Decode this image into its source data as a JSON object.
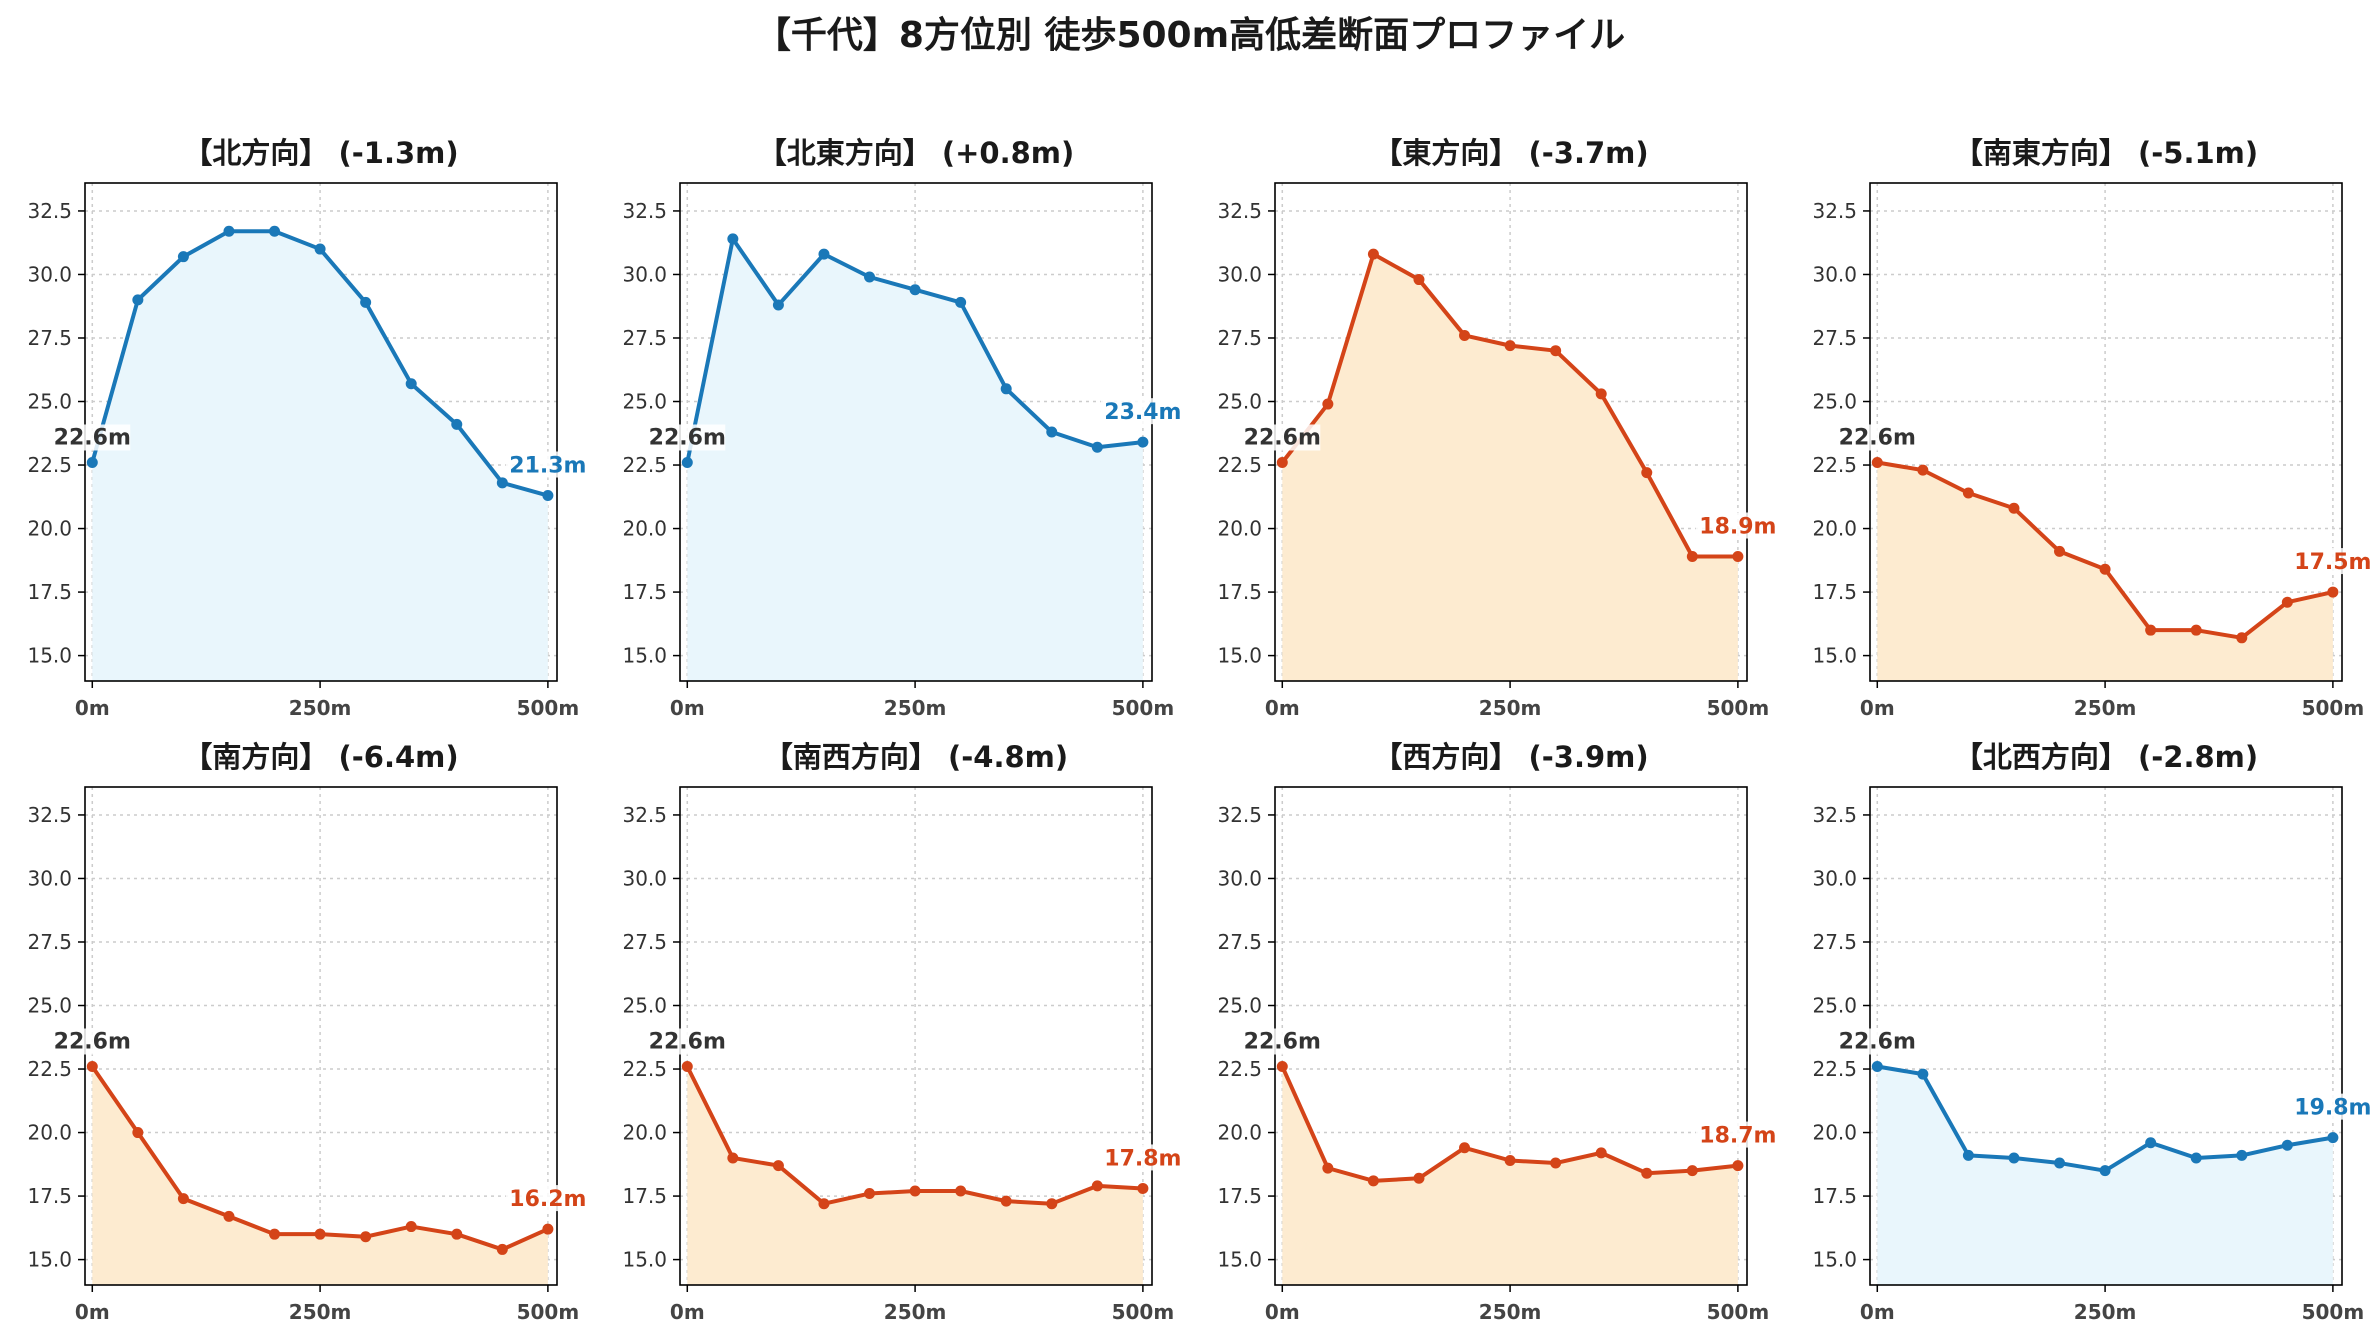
{
  "figure": {
    "title": "【千代】8方位別 徒歩500m高低差断面プロファイル"
  },
  "colors": {
    "up": "#1a78b8",
    "up_fill": "#e9f6fc",
    "down": "#d44418",
    "down_fill": "#fdebd0",
    "start_label": "#333333"
  },
  "chart_data": [
    {
      "type": "line",
      "title": "【北方向】 (-1.3m)",
      "trend": "up",
      "x": [
        0,
        50,
        100,
        150,
        200,
        250,
        300,
        350,
        400,
        450,
        500
      ],
      "values": [
        22.6,
        29.0,
        30.7,
        31.7,
        31.7,
        31.0,
        28.9,
        25.7,
        24.1,
        21.8,
        21.3
      ],
      "start_label": "22.6m",
      "end_label": "21.3m",
      "xticks": [
        "0m",
        "250m",
        "500m"
      ],
      "yticks": [
        "15.0",
        "17.5",
        "20.0",
        "22.5",
        "25.0",
        "27.5",
        "30.0",
        "32.5"
      ],
      "xlim": [
        -8,
        510
      ],
      "ylim": [
        14.0,
        33.6
      ],
      "grid": true
    },
    {
      "type": "line",
      "title": "【北東方向】 (+0.8m)",
      "trend": "up",
      "x": [
        0,
        50,
        100,
        150,
        200,
        250,
        300,
        350,
        400,
        450,
        500
      ],
      "values": [
        22.6,
        31.4,
        28.8,
        30.8,
        29.9,
        29.4,
        28.9,
        25.5,
        23.8,
        23.2,
        23.4
      ],
      "start_label": "22.6m",
      "end_label": "23.4m",
      "xticks": [
        "0m",
        "250m",
        "500m"
      ],
      "yticks": [
        "15.0",
        "17.5",
        "20.0",
        "22.5",
        "25.0",
        "27.5",
        "30.0",
        "32.5"
      ],
      "xlim": [
        -8,
        510
      ],
      "ylim": [
        14.0,
        33.6
      ],
      "grid": true
    },
    {
      "type": "line",
      "title": "【東方向】 (-3.7m)",
      "trend": "down",
      "x": [
        0,
        50,
        100,
        150,
        200,
        250,
        300,
        350,
        400,
        450,
        500
      ],
      "values": [
        22.6,
        24.9,
        30.8,
        29.8,
        27.6,
        27.2,
        27.0,
        25.3,
        22.2,
        18.9,
        18.9
      ],
      "start_label": "22.6m",
      "end_label": "18.9m",
      "xticks": [
        "0m",
        "250m",
        "500m"
      ],
      "yticks": [
        "15.0",
        "17.5",
        "20.0",
        "22.5",
        "25.0",
        "27.5",
        "30.0",
        "32.5"
      ],
      "xlim": [
        -8,
        510
      ],
      "ylim": [
        14.0,
        33.6
      ],
      "grid": true
    },
    {
      "type": "line",
      "title": "【南東方向】 (-5.1m)",
      "trend": "down",
      "x": [
        0,
        50,
        100,
        150,
        200,
        250,
        300,
        350,
        400,
        450,
        500
      ],
      "values": [
        22.6,
        22.3,
        21.4,
        20.8,
        19.1,
        18.4,
        16.0,
        16.0,
        15.7,
        17.1,
        17.5
      ],
      "start_label": "22.6m",
      "end_label": "17.5m",
      "xticks": [
        "0m",
        "250m",
        "500m"
      ],
      "yticks": [
        "15.0",
        "17.5",
        "20.0",
        "22.5",
        "25.0",
        "27.5",
        "30.0",
        "32.5"
      ],
      "xlim": [
        -8,
        510
      ],
      "ylim": [
        14.0,
        33.6
      ],
      "grid": true
    },
    {
      "type": "line",
      "title": "【南方向】 (-6.4m)",
      "trend": "down",
      "x": [
        0,
        50,
        100,
        150,
        200,
        250,
        300,
        350,
        400,
        450,
        500
      ],
      "values": [
        22.6,
        20.0,
        17.4,
        16.7,
        16.0,
        16.0,
        15.9,
        16.3,
        16.0,
        15.4,
        16.2
      ],
      "start_label": "22.6m",
      "end_label": "16.2m",
      "xticks": [
        "0m",
        "250m",
        "500m"
      ],
      "yticks": [
        "15.0",
        "17.5",
        "20.0",
        "22.5",
        "25.0",
        "27.5",
        "30.0",
        "32.5"
      ],
      "xlim": [
        -8,
        510
      ],
      "ylim": [
        14.0,
        33.6
      ],
      "grid": true
    },
    {
      "type": "line",
      "title": "【南西方向】 (-4.8m)",
      "trend": "down",
      "x": [
        0,
        50,
        100,
        150,
        200,
        250,
        300,
        350,
        400,
        450,
        500
      ],
      "values": [
        22.6,
        19.0,
        18.7,
        17.2,
        17.6,
        17.7,
        17.7,
        17.3,
        17.2,
        17.9,
        17.8
      ],
      "start_label": "22.6m",
      "end_label": "17.8m",
      "xticks": [
        "0m",
        "250m",
        "500m"
      ],
      "yticks": [
        "15.0",
        "17.5",
        "20.0",
        "22.5",
        "25.0",
        "27.5",
        "30.0",
        "32.5"
      ],
      "xlim": [
        -8,
        510
      ],
      "ylim": [
        14.0,
        33.6
      ],
      "grid": true
    },
    {
      "type": "line",
      "title": "【西方向】 (-3.9m)",
      "trend": "down",
      "x": [
        0,
        50,
        100,
        150,
        200,
        250,
        300,
        350,
        400,
        450,
        500
      ],
      "values": [
        22.6,
        18.6,
        18.1,
        18.2,
        19.4,
        18.9,
        18.8,
        19.2,
        18.4,
        18.5,
        18.7
      ],
      "start_label": "22.6m",
      "end_label": "18.7m",
      "xticks": [
        "0m",
        "250m",
        "500m"
      ],
      "yticks": [
        "15.0",
        "17.5",
        "20.0",
        "22.5",
        "25.0",
        "27.5",
        "30.0",
        "32.5"
      ],
      "xlim": [
        -8,
        510
      ],
      "ylim": [
        14.0,
        33.6
      ],
      "grid": true
    },
    {
      "type": "line",
      "title": "【北西方向】 (-2.8m)",
      "trend": "up",
      "x": [
        0,
        50,
        100,
        150,
        200,
        250,
        300,
        350,
        400,
        450,
        500
      ],
      "values": [
        22.6,
        22.3,
        19.1,
        19.0,
        18.8,
        18.5,
        19.6,
        19.0,
        19.1,
        19.5,
        19.8
      ],
      "start_label": "22.6m",
      "end_label": "19.8m",
      "xticks": [
        "0m",
        "250m",
        "500m"
      ],
      "yticks": [
        "15.0",
        "17.5",
        "20.0",
        "22.5",
        "25.0",
        "27.5",
        "30.0",
        "32.5"
      ],
      "xlim": [
        -8,
        510
      ],
      "ylim": [
        14.0,
        33.6
      ],
      "grid": true
    }
  ]
}
